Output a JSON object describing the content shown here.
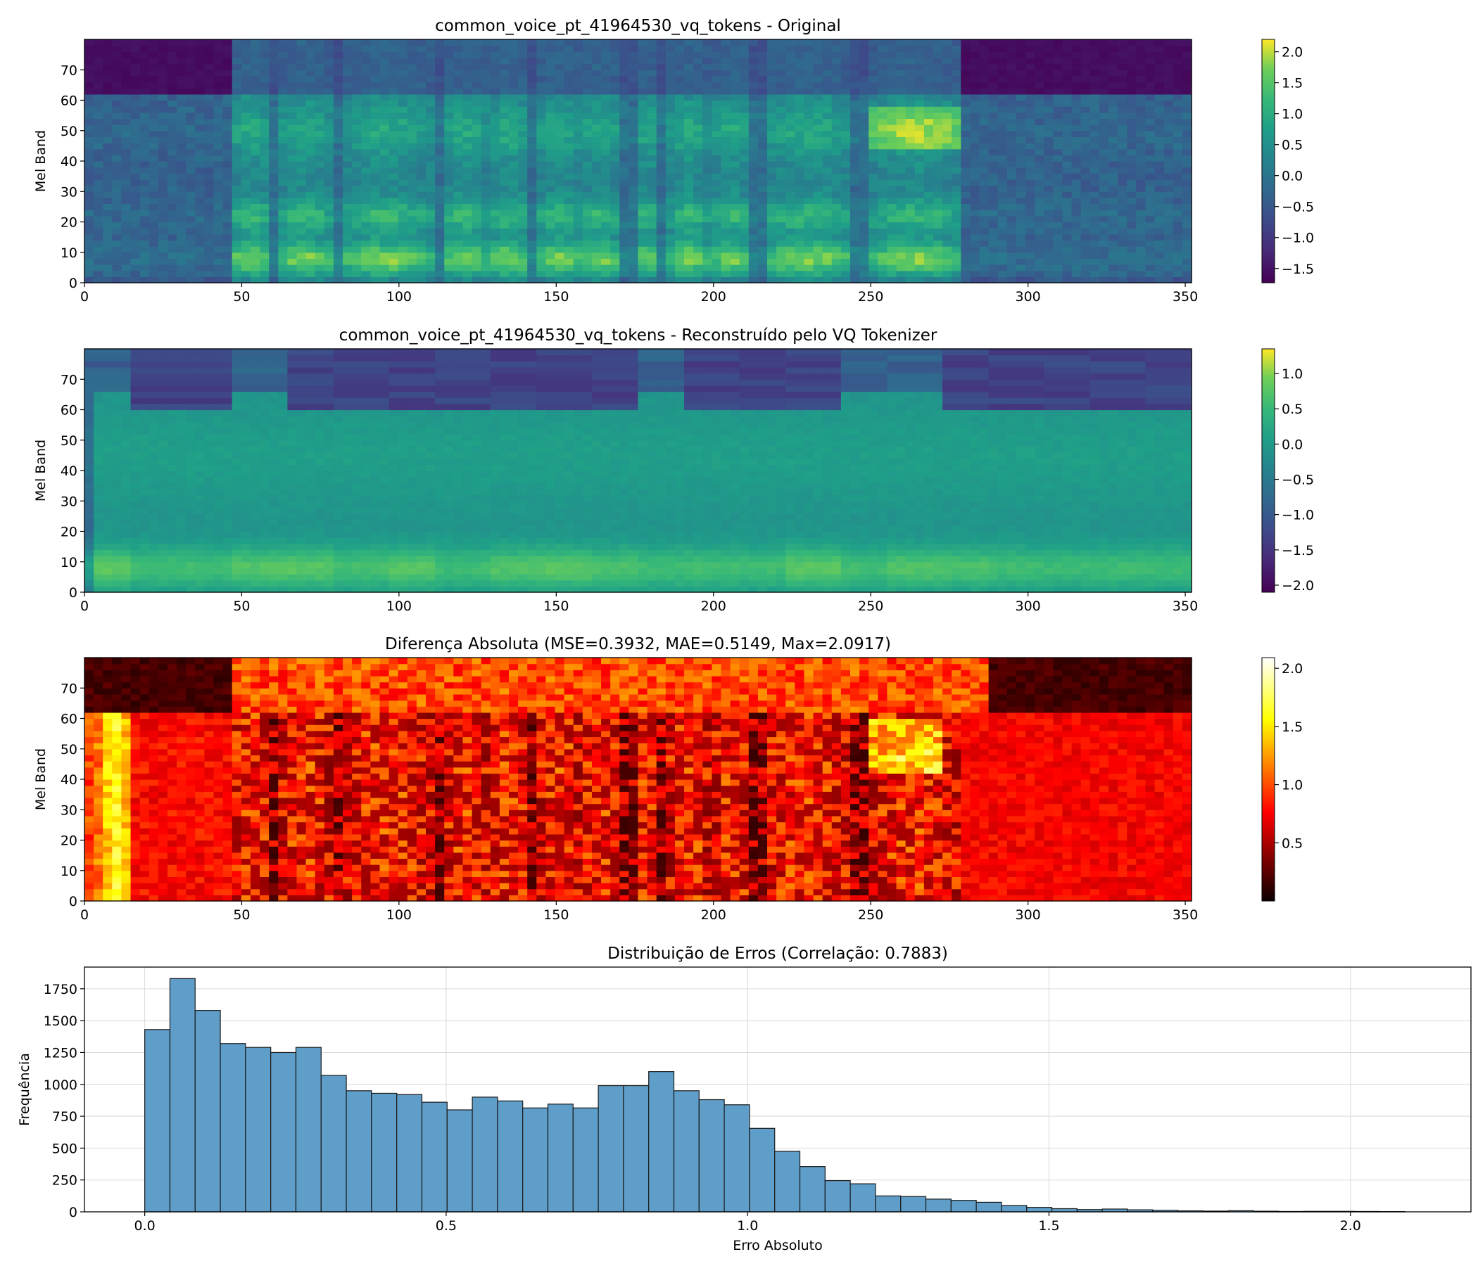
{
  "chart_data": [
    {
      "type": "heatmap",
      "title": "common_voice_pt_41964530_vq_tokens - Original",
      "ylabel": "Mel Band",
      "xlabel": "",
      "xlim": [
        0,
        352
      ],
      "ylim": [
        0,
        80
      ],
      "xticks": [
        0,
        50,
        100,
        150,
        200,
        250,
        300,
        350
      ],
      "yticks": [
        0,
        10,
        20,
        30,
        40,
        50,
        60,
        70
      ],
      "colormap": "viridis",
      "colorbar": {
        "min": -1.73,
        "max": 2.2,
        "ticks": [
          -1.5,
          -1.0,
          -0.5,
          0.0,
          0.5,
          1.0,
          1.5,
          2.0
        ],
        "tick_labels": [
          "−1.5",
          "−1.0",
          "−0.5",
          "0.0",
          "0.5",
          "1.0",
          "1.5",
          "2.0"
        ]
      }
    },
    {
      "type": "heatmap",
      "title": "common_voice_pt_41964530_vq_tokens - Reconstruído pelo VQ Tokenizer",
      "ylabel": "Mel Band",
      "xlabel": "",
      "xlim": [
        0,
        352
      ],
      "ylim": [
        0,
        80
      ],
      "xticks": [
        0,
        50,
        100,
        150,
        200,
        250,
        300,
        350
      ],
      "yticks": [
        0,
        10,
        20,
        30,
        40,
        50,
        60,
        70
      ],
      "colormap": "viridis",
      "colorbar": {
        "min": -2.1,
        "max": 1.35,
        "ticks": [
          -2.0,
          -1.5,
          -1.0,
          -0.5,
          0.0,
          0.5,
          1.0
        ],
        "tick_labels": [
          "−2.0",
          "−1.5",
          "−1.0",
          "−0.5",
          "0.0",
          "0.5",
          "1.0"
        ]
      }
    },
    {
      "type": "heatmap",
      "title": "Diferença Absoluta (MSE=0.3932, MAE=0.5149, Max=2.0917)",
      "ylabel": "Mel Band",
      "xlabel": "",
      "xlim": [
        0,
        352
      ],
      "ylim": [
        0,
        80
      ],
      "xticks": [
        0,
        50,
        100,
        150,
        200,
        250,
        300,
        350
      ],
      "yticks": [
        0,
        10,
        20,
        30,
        40,
        50,
        60,
        70
      ],
      "colormap": "hot",
      "colorbar": {
        "min": 0.0,
        "max": 2.0917,
        "ticks": [
          0.5,
          1.0,
          1.5,
          2.0
        ],
        "tick_labels": [
          "0.5",
          "1.0",
          "1.5",
          "2.0"
        ]
      }
    },
    {
      "type": "bar",
      "title": "Distribuição de Erros (Correlação: 0.7883)",
      "xlabel": "Erro Absoluto",
      "ylabel": "Frequência",
      "xlim": [
        -0.1,
        2.2
      ],
      "ylim": [
        0,
        1920
      ],
      "xticks": [
        0.0,
        0.5,
        1.0,
        1.5,
        2.0
      ],
      "xtick_labels": [
        "0.0",
        "0.5",
        "1.0",
        "1.5",
        "2.0"
      ],
      "yticks": [
        0,
        250,
        500,
        750,
        1000,
        1250,
        1500,
        1750
      ],
      "grid": true,
      "bin_start": 0.0,
      "bin_width": 0.0418,
      "bar_color": "#5f9ec9",
      "values": [
        1430,
        1830,
        1580,
        1320,
        1290,
        1250,
        1290,
        1070,
        950,
        930,
        920,
        860,
        800,
        900,
        870,
        815,
        845,
        815,
        990,
        990,
        1100,
        950,
        880,
        840,
        655,
        475,
        355,
        245,
        220,
        125,
        120,
        100,
        90,
        75,
        50,
        35,
        25,
        18,
        22,
        16,
        12,
        8,
        6,
        9,
        5,
        3,
        4,
        4,
        3,
        2
      ]
    }
  ]
}
